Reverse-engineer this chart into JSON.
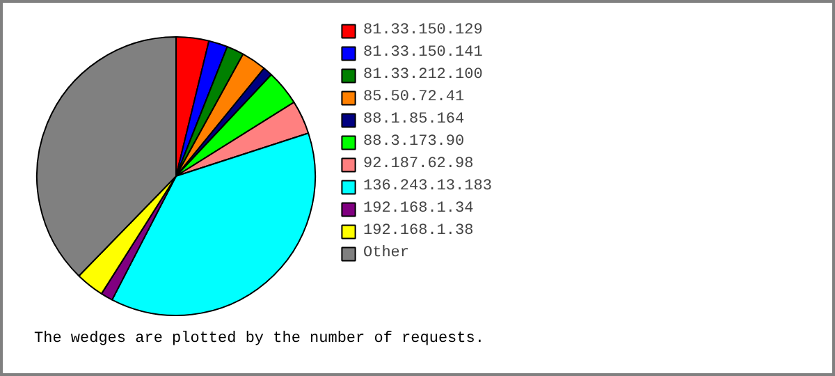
{
  "chart_data": {
    "type": "pie",
    "categories": [
      "81.33.150.129",
      "81.33.150.141",
      "81.33.212.100",
      "85.50.72.41",
      "88.1.85.164",
      "88.3.173.90",
      "92.187.62.98",
      "136.243.13.183",
      "192.168.1.34",
      "192.168.1.38",
      "Other"
    ],
    "values": [
      3.8,
      2.2,
      2.0,
      2.9,
      1.1,
      4.1,
      3.9,
      37.6,
      1.4,
      3.3,
      37.7
    ],
    "colors": [
      "#ff0000",
      "#0000ff",
      "#008000",
      "#ff8000",
      "#000080",
      "#00ff00",
      "#ff8080",
      "#00ffff",
      "#800080",
      "#ffff00",
      "#808080"
    ],
    "legend": "right",
    "annotations": [
      "The wedges are plotted by the number of requests."
    ]
  }
}
